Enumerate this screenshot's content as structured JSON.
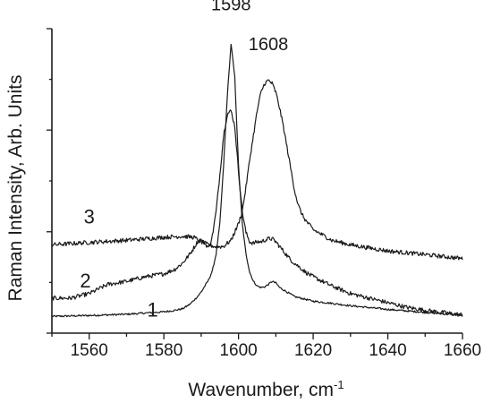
{
  "chart_data": {
    "type": "line",
    "xlabel": "Wavenumber, cm",
    "xlabel_superscript": "-1",
    "ylabel": "Raman Intensity, Arb. Units",
    "xlim": [
      1550,
      1660
    ],
    "ylim": [
      0,
      1
    ],
    "x_ticks": [
      1560,
      1580,
      1600,
      1620,
      1640,
      1660
    ],
    "y_tick_values": [
      0,
      0.333,
      0.667,
      1.0
    ],
    "y_tick_labels_shown": false,
    "grid": false,
    "peak_annotations": [
      {
        "text": "1598",
        "x": 1598,
        "y": 1.06
      },
      {
        "text": "1608",
        "x": 1608,
        "y": 0.93
      }
    ],
    "series": [
      {
        "name": "1",
        "label_pos": {
          "x": 1577,
          "y": 0.055
        },
        "x": [
          1550,
          1560,
          1570,
          1575,
          1580,
          1583,
          1585,
          1587,
          1589,
          1590,
          1591,
          1592,
          1593,
          1594,
          1595,
          1596,
          1597,
          1598,
          1599,
          1600,
          1601,
          1602,
          1603,
          1604,
          1605,
          1606,
          1607,
          1608,
          1609,
          1610,
          1611,
          1613,
          1615,
          1620,
          1625,
          1630,
          1640,
          1650,
          1660
        ],
        "y": [
          0.055,
          0.058,
          0.062,
          0.066,
          0.07,
          0.075,
          0.08,
          0.095,
          0.12,
          0.135,
          0.155,
          0.175,
          0.205,
          0.26,
          0.36,
          0.55,
          0.78,
          0.95,
          0.84,
          0.55,
          0.36,
          0.26,
          0.2,
          0.17,
          0.155,
          0.15,
          0.152,
          0.16,
          0.17,
          0.165,
          0.15,
          0.135,
          0.12,
          0.105,
          0.098,
          0.09,
          0.078,
          0.068,
          0.058
        ]
      },
      {
        "name": "2",
        "label_pos": {
          "x": 1559,
          "y": 0.15
        },
        "x": [
          1550,
          1555,
          1560,
          1565,
          1570,
          1575,
          1580,
          1583,
          1585,
          1587,
          1588,
          1589,
          1590,
          1591,
          1592,
          1593,
          1594,
          1595,
          1596,
          1597,
          1598,
          1599,
          1600,
          1601,
          1602,
          1603,
          1604,
          1605,
          1606,
          1607,
          1608,
          1609,
          1610,
          1611,
          1612,
          1614,
          1616,
          1618,
          1620,
          1625,
          1630,
          1635,
          1640,
          1645,
          1650,
          1660
        ],
        "y": [
          0.115,
          0.115,
          0.13,
          0.16,
          0.17,
          0.185,
          0.195,
          0.21,
          0.23,
          0.26,
          0.28,
          0.3,
          0.305,
          0.295,
          0.28,
          0.32,
          0.4,
          0.52,
          0.65,
          0.72,
          0.73,
          0.68,
          0.53,
          0.4,
          0.33,
          0.3,
          0.295,
          0.3,
          0.3,
          0.305,
          0.31,
          0.31,
          0.3,
          0.285,
          0.27,
          0.24,
          0.22,
          0.2,
          0.185,
          0.155,
          0.13,
          0.115,
          0.1,
          0.085,
          0.075,
          0.06
        ]
      },
      {
        "name": "3",
        "label_pos": {
          "x": 1560,
          "y": 0.36
        },
        "x": [
          1550,
          1560,
          1570,
          1580,
          1585,
          1588,
          1590,
          1592,
          1594,
          1596,
          1598,
          1600,
          1601,
          1602,
          1603,
          1604,
          1605,
          1606,
          1607,
          1608,
          1609,
          1610,
          1611,
          1612,
          1613,
          1614,
          1615,
          1616,
          1617,
          1618,
          1620,
          1625,
          1630,
          1640,
          1650,
          1660
        ],
        "y": [
          0.29,
          0.298,
          0.305,
          0.315,
          0.318,
          0.315,
          0.3,
          0.29,
          0.283,
          0.285,
          0.305,
          0.36,
          0.4,
          0.48,
          0.57,
          0.65,
          0.73,
          0.79,
          0.82,
          0.83,
          0.82,
          0.79,
          0.74,
          0.68,
          0.61,
          0.54,
          0.47,
          0.42,
          0.39,
          0.37,
          0.34,
          0.305,
          0.29,
          0.27,
          0.258,
          0.245
        ]
      }
    ]
  }
}
